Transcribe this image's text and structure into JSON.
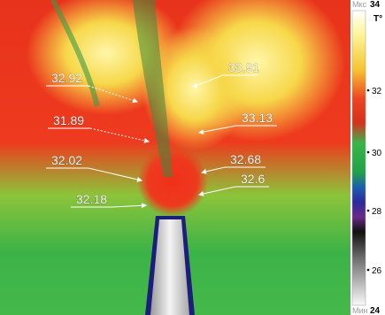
{
  "thermogram": {
    "annotations": [
      {
        "label": "32.92"
      },
      {
        "label": "33.91"
      },
      {
        "label": "31.89"
      },
      {
        "label": "33.13"
      },
      {
        "label": "32.02"
      },
      {
        "label": "32.68"
      },
      {
        "label": "32.6"
      },
      {
        "label": "32.18"
      }
    ]
  },
  "scale": {
    "max_label": "Мкс",
    "max": "34",
    "unit": "T°",
    "ticks": [
      "32",
      "30",
      "28",
      "26"
    ],
    "min_label": "Мин",
    "min": "24"
  }
}
